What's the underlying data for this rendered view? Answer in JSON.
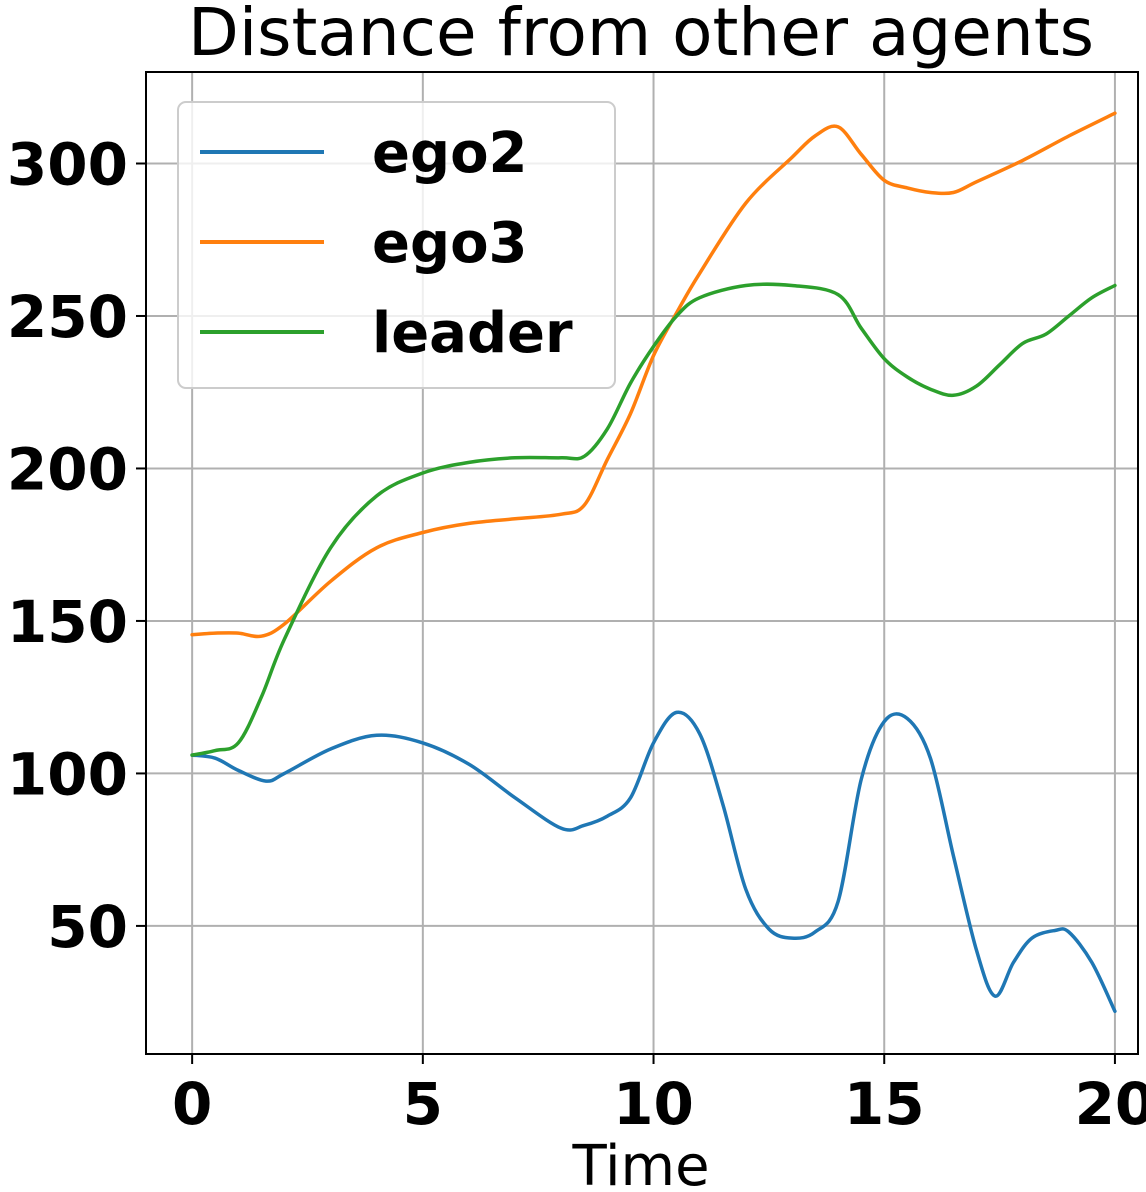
{
  "chart_data": {
    "type": "line",
    "title": "Distance from other agents",
    "xlabel": "Time",
    "ylabel": "",
    "xlim": [
      -1,
      20.5
    ],
    "ylim": [
      8,
      330
    ],
    "xticks": [
      0,
      5,
      10,
      15,
      20
    ],
    "yticks": [
      50,
      100,
      150,
      200,
      250,
      300
    ],
    "grid": true,
    "legend_position": "top-left",
    "series": [
      {
        "name": "ego2",
        "color": "#1f77b4",
        "points": [
          [
            0,
            106
          ],
          [
            0.5,
            105
          ],
          [
            1,
            101
          ],
          [
            1.6,
            97.5
          ],
          [
            2,
            100
          ],
          [
            3,
            108
          ],
          [
            4,
            112.5
          ],
          [
            5,
            110
          ],
          [
            6,
            103
          ],
          [
            7,
            92
          ],
          [
            8,
            82
          ],
          [
            8.5,
            83
          ],
          [
            9,
            86
          ],
          [
            9.5,
            92
          ],
          [
            10,
            110
          ],
          [
            10.5,
            120
          ],
          [
            11,
            113
          ],
          [
            11.5,
            90
          ],
          [
            12,
            62
          ],
          [
            12.5,
            49
          ],
          [
            13,
            46
          ],
          [
            13.5,
            48
          ],
          [
            14,
            58
          ],
          [
            14.5,
            98
          ],
          [
            15,
            117
          ],
          [
            15.5,
            118
          ],
          [
            16,
            105
          ],
          [
            16.5,
            73
          ],
          [
            17,
            42
          ],
          [
            17.4,
            27
          ],
          [
            17.8,
            38
          ],
          [
            18.2,
            46
          ],
          [
            18.7,
            48.5
          ],
          [
            19,
            48
          ],
          [
            19.5,
            38
          ],
          [
            20,
            22
          ]
        ]
      },
      {
        "name": "ego3",
        "color": "#ff7f0e",
        "points": [
          [
            0,
            145.5
          ],
          [
            0.5,
            146
          ],
          [
            1,
            146
          ],
          [
            1.5,
            145
          ],
          [
            2,
            149
          ],
          [
            3,
            163
          ],
          [
            4,
            174
          ],
          [
            5,
            179
          ],
          [
            6,
            182
          ],
          [
            7,
            183.5
          ],
          [
            8,
            185
          ],
          [
            8.5,
            188
          ],
          [
            9,
            203
          ],
          [
            9.5,
            218
          ],
          [
            10,
            237
          ],
          [
            10.5,
            251
          ],
          [
            11,
            264
          ],
          [
            12,
            287
          ],
          [
            13,
            302
          ],
          [
            13.5,
            309
          ],
          [
            14,
            312
          ],
          [
            14.5,
            303
          ],
          [
            15,
            294.5
          ],
          [
            15.5,
            292
          ],
          [
            16,
            290.5
          ],
          [
            16.5,
            290.5
          ],
          [
            17,
            294
          ],
          [
            18,
            301
          ],
          [
            19,
            309
          ],
          [
            20,
            316.5
          ]
        ]
      },
      {
        "name": "leader",
        "color": "#2ca02c",
        "points": [
          [
            0,
            106
          ],
          [
            0.5,
            107.5
          ],
          [
            1,
            110
          ],
          [
            1.5,
            125
          ],
          [
            2,
            144
          ],
          [
            3,
            174
          ],
          [
            4,
            191
          ],
          [
            5,
            198.5
          ],
          [
            6,
            202
          ],
          [
            7,
            203.5
          ],
          [
            8,
            203.5
          ],
          [
            8.5,
            204
          ],
          [
            9,
            213
          ],
          [
            9.5,
            228
          ],
          [
            10,
            240
          ],
          [
            10.5,
            250
          ],
          [
            11,
            256
          ],
          [
            12,
            260
          ],
          [
            13,
            260
          ],
          [
            14,
            257
          ],
          [
            14.5,
            246
          ],
          [
            15,
            236
          ],
          [
            15.5,
            230
          ],
          [
            16,
            226
          ],
          [
            16.5,
            224
          ],
          [
            17,
            227
          ],
          [
            17.5,
            234
          ],
          [
            18,
            241
          ],
          [
            18.5,
            244
          ],
          [
            19,
            250
          ],
          [
            19.5,
            256
          ],
          [
            20,
            260
          ]
        ]
      }
    ]
  }
}
